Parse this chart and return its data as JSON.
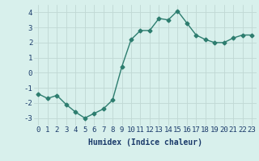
{
  "x": [
    0,
    1,
    2,
    3,
    4,
    5,
    6,
    7,
    8,
    9,
    10,
    11,
    12,
    13,
    14,
    15,
    16,
    17,
    18,
    19,
    20,
    21,
    22,
    23
  ],
  "y": [
    -1.4,
    -1.7,
    -1.5,
    -2.1,
    -2.6,
    -3.0,
    -2.7,
    -2.4,
    -1.8,
    0.4,
    2.2,
    2.8,
    2.8,
    3.6,
    3.5,
    4.1,
    3.3,
    2.5,
    2.2,
    2.0,
    2.0,
    2.3,
    2.5,
    2.5
  ],
  "xlabel": "Humidex (Indice chaleur)",
  "ylim": [
    -3.5,
    4.5
  ],
  "xlim": [
    -0.5,
    23.5
  ],
  "yticks": [
    -3,
    -2,
    -1,
    0,
    1,
    2,
    3,
    4
  ],
  "xticks": [
    0,
    1,
    2,
    3,
    4,
    5,
    6,
    7,
    8,
    9,
    10,
    11,
    12,
    13,
    14,
    15,
    16,
    17,
    18,
    19,
    20,
    21,
    22,
    23
  ],
  "line_color": "#2d7d6f",
  "marker": "D",
  "marker_size": 2.5,
  "bg_color": "#d8f0ec",
  "grid_color": "#c0d8d4",
  "tick_label_color": "#1a3a6a",
  "xlabel_color": "#1a3a6a",
  "xlabel_fontsize": 7,
  "tick_fontsize": 6.5,
  "linewidth": 1.0
}
